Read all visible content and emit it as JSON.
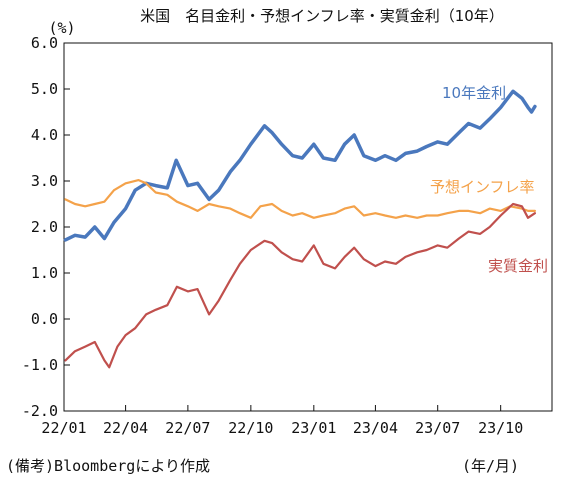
{
  "chart_data": {
    "type": "line",
    "title": "米国　名目金利・予想インフレ率・実質金利（10年）",
    "y_unit": "(%)",
    "x_unit": "(年/月)",
    "note": "(備考)Bloombergにより作成",
    "ylim": [
      -2.0,
      6.0
    ],
    "yticks": [
      "6.0",
      "5.0",
      "4.0",
      "3.0",
      "2.0",
      "1.0",
      "0.0",
      "-1.0",
      "-2.0"
    ],
    "xlim": [
      "2022-01-01",
      "2023-12-15"
    ],
    "xticks": [
      {
        "label": "22/01",
        "date": "2022-01-01"
      },
      {
        "label": "22/04",
        "date": "2022-04-01"
      },
      {
        "label": "22/07",
        "date": "2022-07-01"
      },
      {
        "label": "22/10",
        "date": "2022-10-01"
      },
      {
        "label": "23/01",
        "date": "2023-01-01"
      },
      {
        "label": "23/04",
        "date": "2023-04-01"
      },
      {
        "label": "23/07",
        "date": "2023-07-01"
      },
      {
        "label": "23/10",
        "date": "2023-10-01"
      }
    ],
    "grid": false,
    "legend": "inline labels",
    "series": [
      {
        "name": "10年金利",
        "color": "#4a78bd",
        "points": [
          [
            "2022-01-03",
            1.72
          ],
          [
            "2022-01-17",
            1.82
          ],
          [
            "2022-02-01",
            1.78
          ],
          [
            "2022-02-15",
            2.0
          ],
          [
            "2022-03-01",
            1.75
          ],
          [
            "2022-03-15",
            2.1
          ],
          [
            "2022-04-01",
            2.4
          ],
          [
            "2022-04-15",
            2.8
          ],
          [
            "2022-05-01",
            2.95
          ],
          [
            "2022-05-15",
            2.9
          ],
          [
            "2022-06-01",
            2.85
          ],
          [
            "2022-06-14",
            3.45
          ],
          [
            "2022-07-01",
            2.9
          ],
          [
            "2022-07-15",
            2.95
          ],
          [
            "2022-08-01",
            2.6
          ],
          [
            "2022-08-15",
            2.8
          ],
          [
            "2022-09-01",
            3.2
          ],
          [
            "2022-09-15",
            3.45
          ],
          [
            "2022-10-01",
            3.8
          ],
          [
            "2022-10-21",
            4.2
          ],
          [
            "2022-11-01",
            4.05
          ],
          [
            "2022-11-15",
            3.8
          ],
          [
            "2022-12-01",
            3.55
          ],
          [
            "2022-12-15",
            3.5
          ],
          [
            "2023-01-01",
            3.8
          ],
          [
            "2023-01-15",
            3.5
          ],
          [
            "2023-02-01",
            3.45
          ],
          [
            "2023-02-15",
            3.8
          ],
          [
            "2023-03-01",
            4.0
          ],
          [
            "2023-03-15",
            3.55
          ],
          [
            "2023-04-01",
            3.45
          ],
          [
            "2023-04-15",
            3.55
          ],
          [
            "2023-05-01",
            3.45
          ],
          [
            "2023-05-15",
            3.6
          ],
          [
            "2023-06-01",
            3.65
          ],
          [
            "2023-06-15",
            3.75
          ],
          [
            "2023-07-01",
            3.85
          ],
          [
            "2023-07-15",
            3.8
          ],
          [
            "2023-08-01",
            4.05
          ],
          [
            "2023-08-15",
            4.25
          ],
          [
            "2023-09-01",
            4.15
          ],
          [
            "2023-09-15",
            4.35
          ],
          [
            "2023-10-01",
            4.6
          ],
          [
            "2023-10-19",
            4.95
          ],
          [
            "2023-11-01",
            4.8
          ],
          [
            "2023-11-10",
            4.6
          ],
          [
            "2023-11-15",
            4.5
          ],
          [
            "2023-11-20",
            4.62
          ]
        ]
      },
      {
        "name": "予想インフレ率",
        "color": "#f4a24a",
        "points": [
          [
            "2022-01-03",
            2.6
          ],
          [
            "2022-01-17",
            2.5
          ],
          [
            "2022-02-01",
            2.45
          ],
          [
            "2022-02-15",
            2.5
          ],
          [
            "2022-03-01",
            2.55
          ],
          [
            "2022-03-15",
            2.8
          ],
          [
            "2022-04-01",
            2.95
          ],
          [
            "2022-04-20",
            3.02
          ],
          [
            "2022-05-01",
            2.95
          ],
          [
            "2022-05-15",
            2.75
          ],
          [
            "2022-06-01",
            2.7
          ],
          [
            "2022-06-15",
            2.55
          ],
          [
            "2022-07-01",
            2.45
          ],
          [
            "2022-07-15",
            2.35
          ],
          [
            "2022-08-01",
            2.5
          ],
          [
            "2022-08-15",
            2.45
          ],
          [
            "2022-09-01",
            2.4
          ],
          [
            "2022-09-15",
            2.3
          ],
          [
            "2022-10-01",
            2.2
          ],
          [
            "2022-10-15",
            2.45
          ],
          [
            "2022-11-01",
            2.5
          ],
          [
            "2022-11-15",
            2.35
          ],
          [
            "2022-12-01",
            2.25
          ],
          [
            "2022-12-15",
            2.3
          ],
          [
            "2023-01-01",
            2.2
          ],
          [
            "2023-01-15",
            2.25
          ],
          [
            "2023-02-01",
            2.3
          ],
          [
            "2023-02-15",
            2.4
          ],
          [
            "2023-03-01",
            2.45
          ],
          [
            "2023-03-15",
            2.25
          ],
          [
            "2023-04-01",
            2.3
          ],
          [
            "2023-04-15",
            2.25
          ],
          [
            "2023-05-01",
            2.2
          ],
          [
            "2023-05-15",
            2.25
          ],
          [
            "2023-06-01",
            2.2
          ],
          [
            "2023-06-15",
            2.25
          ],
          [
            "2023-07-01",
            2.25
          ],
          [
            "2023-07-15",
            2.3
          ],
          [
            "2023-08-01",
            2.35
          ],
          [
            "2023-08-15",
            2.35
          ],
          [
            "2023-09-01",
            2.3
          ],
          [
            "2023-09-15",
            2.4
          ],
          [
            "2023-10-01",
            2.35
          ],
          [
            "2023-10-15",
            2.45
          ],
          [
            "2023-11-01",
            2.4
          ],
          [
            "2023-11-10",
            2.35
          ],
          [
            "2023-11-20",
            2.35
          ]
        ]
      },
      {
        "name": "実質金利",
        "color": "#c0504d",
        "points": [
          [
            "2022-01-03",
            -0.9
          ],
          [
            "2022-01-17",
            -0.7
          ],
          [
            "2022-02-01",
            -0.6
          ],
          [
            "2022-02-15",
            -0.5
          ],
          [
            "2022-03-01",
            -0.9
          ],
          [
            "2022-03-08",
            -1.05
          ],
          [
            "2022-03-20",
            -0.6
          ],
          [
            "2022-04-01",
            -0.35
          ],
          [
            "2022-04-15",
            -0.2
          ],
          [
            "2022-05-01",
            0.1
          ],
          [
            "2022-05-15",
            0.2
          ],
          [
            "2022-06-01",
            0.3
          ],
          [
            "2022-06-15",
            0.7
          ],
          [
            "2022-07-01",
            0.6
          ],
          [
            "2022-07-15",
            0.65
          ],
          [
            "2022-08-01",
            0.1
          ],
          [
            "2022-08-15",
            0.4
          ],
          [
            "2022-09-01",
            0.85
          ],
          [
            "2022-09-15",
            1.2
          ],
          [
            "2022-10-01",
            1.5
          ],
          [
            "2022-10-21",
            1.7
          ],
          [
            "2022-11-01",
            1.65
          ],
          [
            "2022-11-15",
            1.45
          ],
          [
            "2022-12-01",
            1.3
          ],
          [
            "2022-12-15",
            1.25
          ],
          [
            "2023-01-01",
            1.6
          ],
          [
            "2023-01-15",
            1.2
          ],
          [
            "2023-02-01",
            1.1
          ],
          [
            "2023-02-15",
            1.35
          ],
          [
            "2023-03-01",
            1.55
          ],
          [
            "2023-03-15",
            1.3
          ],
          [
            "2023-04-01",
            1.15
          ],
          [
            "2023-04-15",
            1.25
          ],
          [
            "2023-05-01",
            1.2
          ],
          [
            "2023-05-15",
            1.35
          ],
          [
            "2023-06-01",
            1.45
          ],
          [
            "2023-06-15",
            1.5
          ],
          [
            "2023-07-01",
            1.6
          ],
          [
            "2023-07-15",
            1.55
          ],
          [
            "2023-08-01",
            1.75
          ],
          [
            "2023-08-15",
            1.9
          ],
          [
            "2023-09-01",
            1.85
          ],
          [
            "2023-09-15",
            2.0
          ],
          [
            "2023-10-01",
            2.25
          ],
          [
            "2023-10-19",
            2.5
          ],
          [
            "2023-11-01",
            2.45
          ],
          [
            "2023-11-10",
            2.2
          ],
          [
            "2023-11-20",
            2.3
          ]
        ]
      }
    ]
  }
}
